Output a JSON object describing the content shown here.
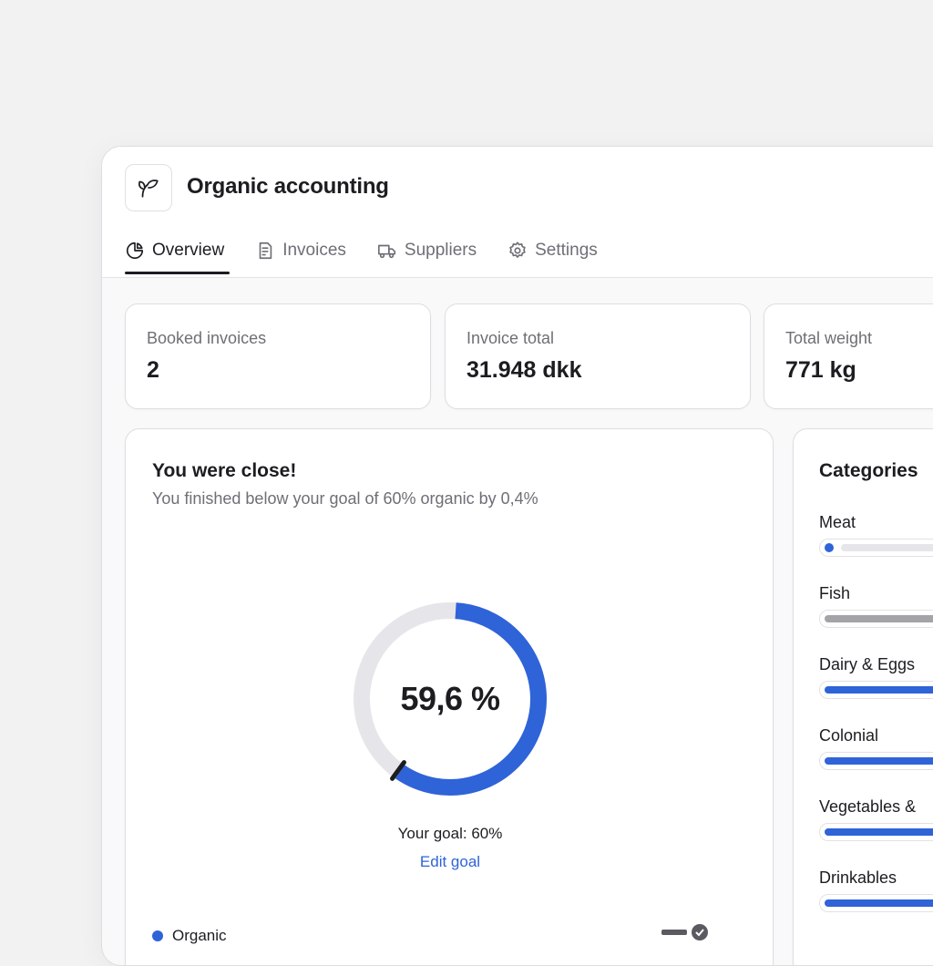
{
  "app": {
    "title": "Organic accounting",
    "logo_icon": "leaf-icon"
  },
  "tabs": [
    {
      "label": "Overview",
      "icon": "pie-chart-icon",
      "active": true
    },
    {
      "label": "Invoices",
      "icon": "document-icon",
      "active": false
    },
    {
      "label": "Suppliers",
      "icon": "truck-icon",
      "active": false
    },
    {
      "label": "Settings",
      "icon": "gear-icon",
      "active": false
    }
  ],
  "stats": [
    {
      "label": "Booked invoices",
      "value": "2"
    },
    {
      "label": "Invoice total",
      "value": "31.948 dkk"
    },
    {
      "label": "Total weight",
      "value": "771 kg"
    }
  ],
  "goal": {
    "title": "You were close!",
    "subtitle": "You finished below your goal of 60% organic by 0,4%",
    "percent_label": "59,6 %",
    "percent_value": 59.6,
    "goal_value": 60,
    "goal_text": "Your goal: 60%",
    "edit_label": "Edit goal",
    "legend_label": "Organic"
  },
  "categories": {
    "title": "Categories",
    "items": [
      {
        "name": "Meat",
        "fraction": 0.0,
        "color": "#2f63d8",
        "style": "dot"
      },
      {
        "name": "Fish",
        "fraction": 1.0,
        "color": "#a3a3a8",
        "style": "bar"
      },
      {
        "name": "Dairy & Eggs",
        "fraction": 1.0,
        "color": "#2f63d8",
        "style": "bar"
      },
      {
        "name": "Colonial",
        "fraction": 1.0,
        "color": "#2f63d8",
        "style": "bar"
      },
      {
        "name": "Vegetables & ",
        "fraction": 1.0,
        "color": "#2f63d8",
        "style": "bar"
      },
      {
        "name": "Drinkables",
        "fraction": 1.0,
        "color": "#2f63d8",
        "style": "bar"
      }
    ]
  },
  "colors": {
    "accent": "#2f63d8",
    "track": "#e6e6ea",
    "text": "#1c1d21",
    "muted": "#6e6f76"
  }
}
